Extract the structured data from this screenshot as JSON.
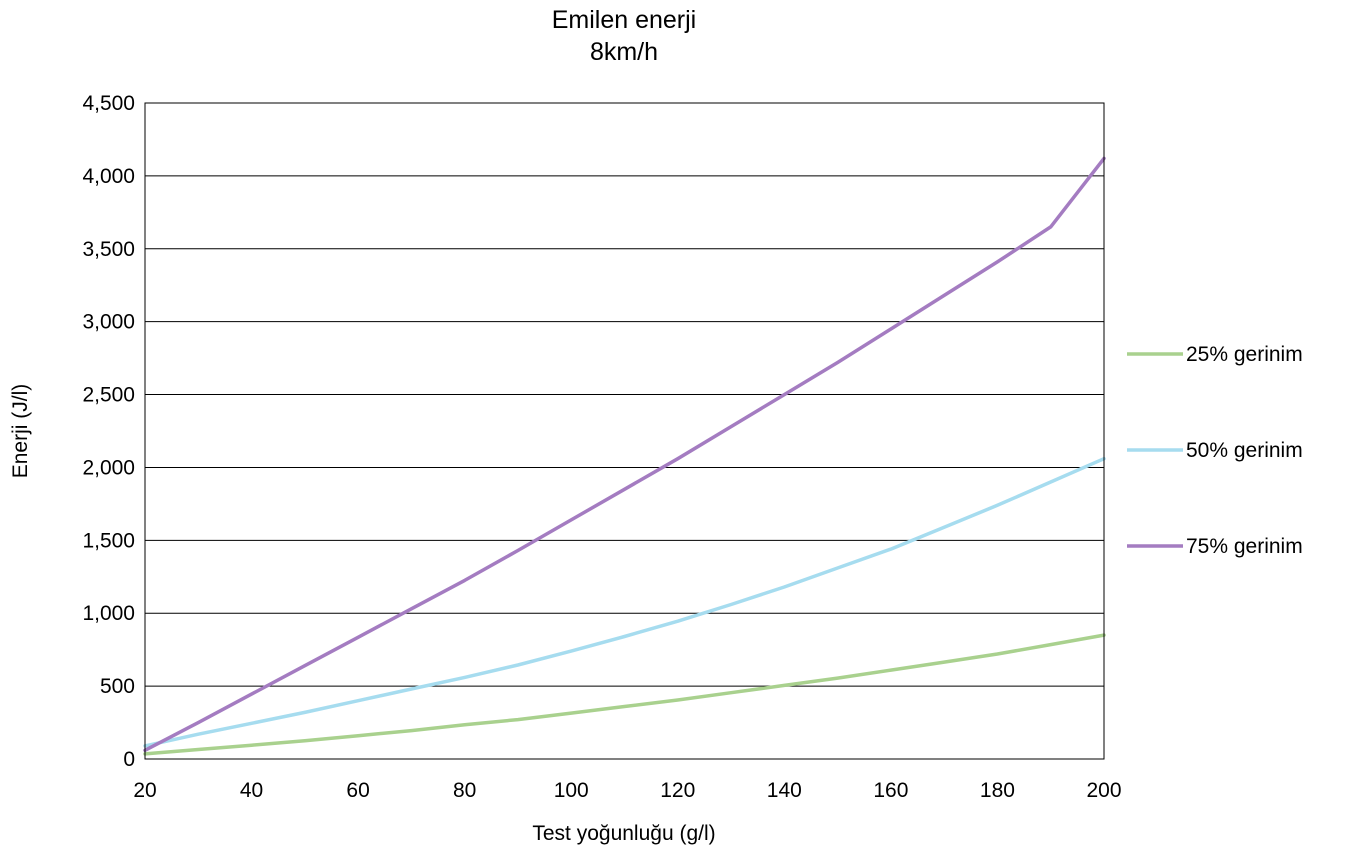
{
  "chart_data": {
    "type": "line",
    "title": "Emilen enerji",
    "subtitle": "8km/h",
    "xlabel": "Test yoğunluğu (g/l)",
    "ylabel": "Enerji (J/l)",
    "xlim": [
      20,
      200
    ],
    "ylim": [
      0,
      4500
    ],
    "x_ticks": [
      20,
      40,
      60,
      80,
      100,
      120,
      140,
      160,
      180,
      200
    ],
    "x_tick_labels": [
      "20",
      "40",
      "60",
      "80",
      "100",
      "120",
      "140",
      "160",
      "180",
      "200"
    ],
    "y_ticks": [
      0,
      500,
      1000,
      1500,
      2000,
      2500,
      3000,
      3500,
      4000,
      4500
    ],
    "y_tick_labels": [
      "0",
      "500",
      "1,000",
      "1,500",
      "2,000",
      "2,500",
      "3,000",
      "3,500",
      "4,000",
      "4,500"
    ],
    "grid": "horizontal",
    "legend_position": "right",
    "x": [
      20,
      30,
      40,
      50,
      60,
      70,
      80,
      90,
      100,
      110,
      120,
      130,
      140,
      150,
      160,
      170,
      180,
      190,
      200
    ],
    "series": [
      {
        "name": "25% gerinim",
        "color": "#a9d18e",
        "values": [
          35,
          65,
          95,
          125,
          160,
          195,
          235,
          270,
          315,
          360,
          405,
          455,
          505,
          555,
          610,
          665,
          720,
          785,
          850
        ]
      },
      {
        "name": "50% gerinim",
        "color": "#a6dcef",
        "values": [
          90,
          170,
          245,
          320,
          400,
          480,
          560,
          645,
          740,
          840,
          945,
          1060,
          1180,
          1310,
          1440,
          1590,
          1740,
          1900,
          2060
        ]
      },
      {
        "name": "75% gerinim",
        "color": "#a47cc1",
        "values": [
          60,
          250,
          445,
          640,
          835,
          1030,
          1225,
          1430,
          1640,
          1850,
          2060,
          2280,
          2500,
          2720,
          2950,
          3180,
          3410,
          3650,
          4120
        ]
      }
    ]
  }
}
